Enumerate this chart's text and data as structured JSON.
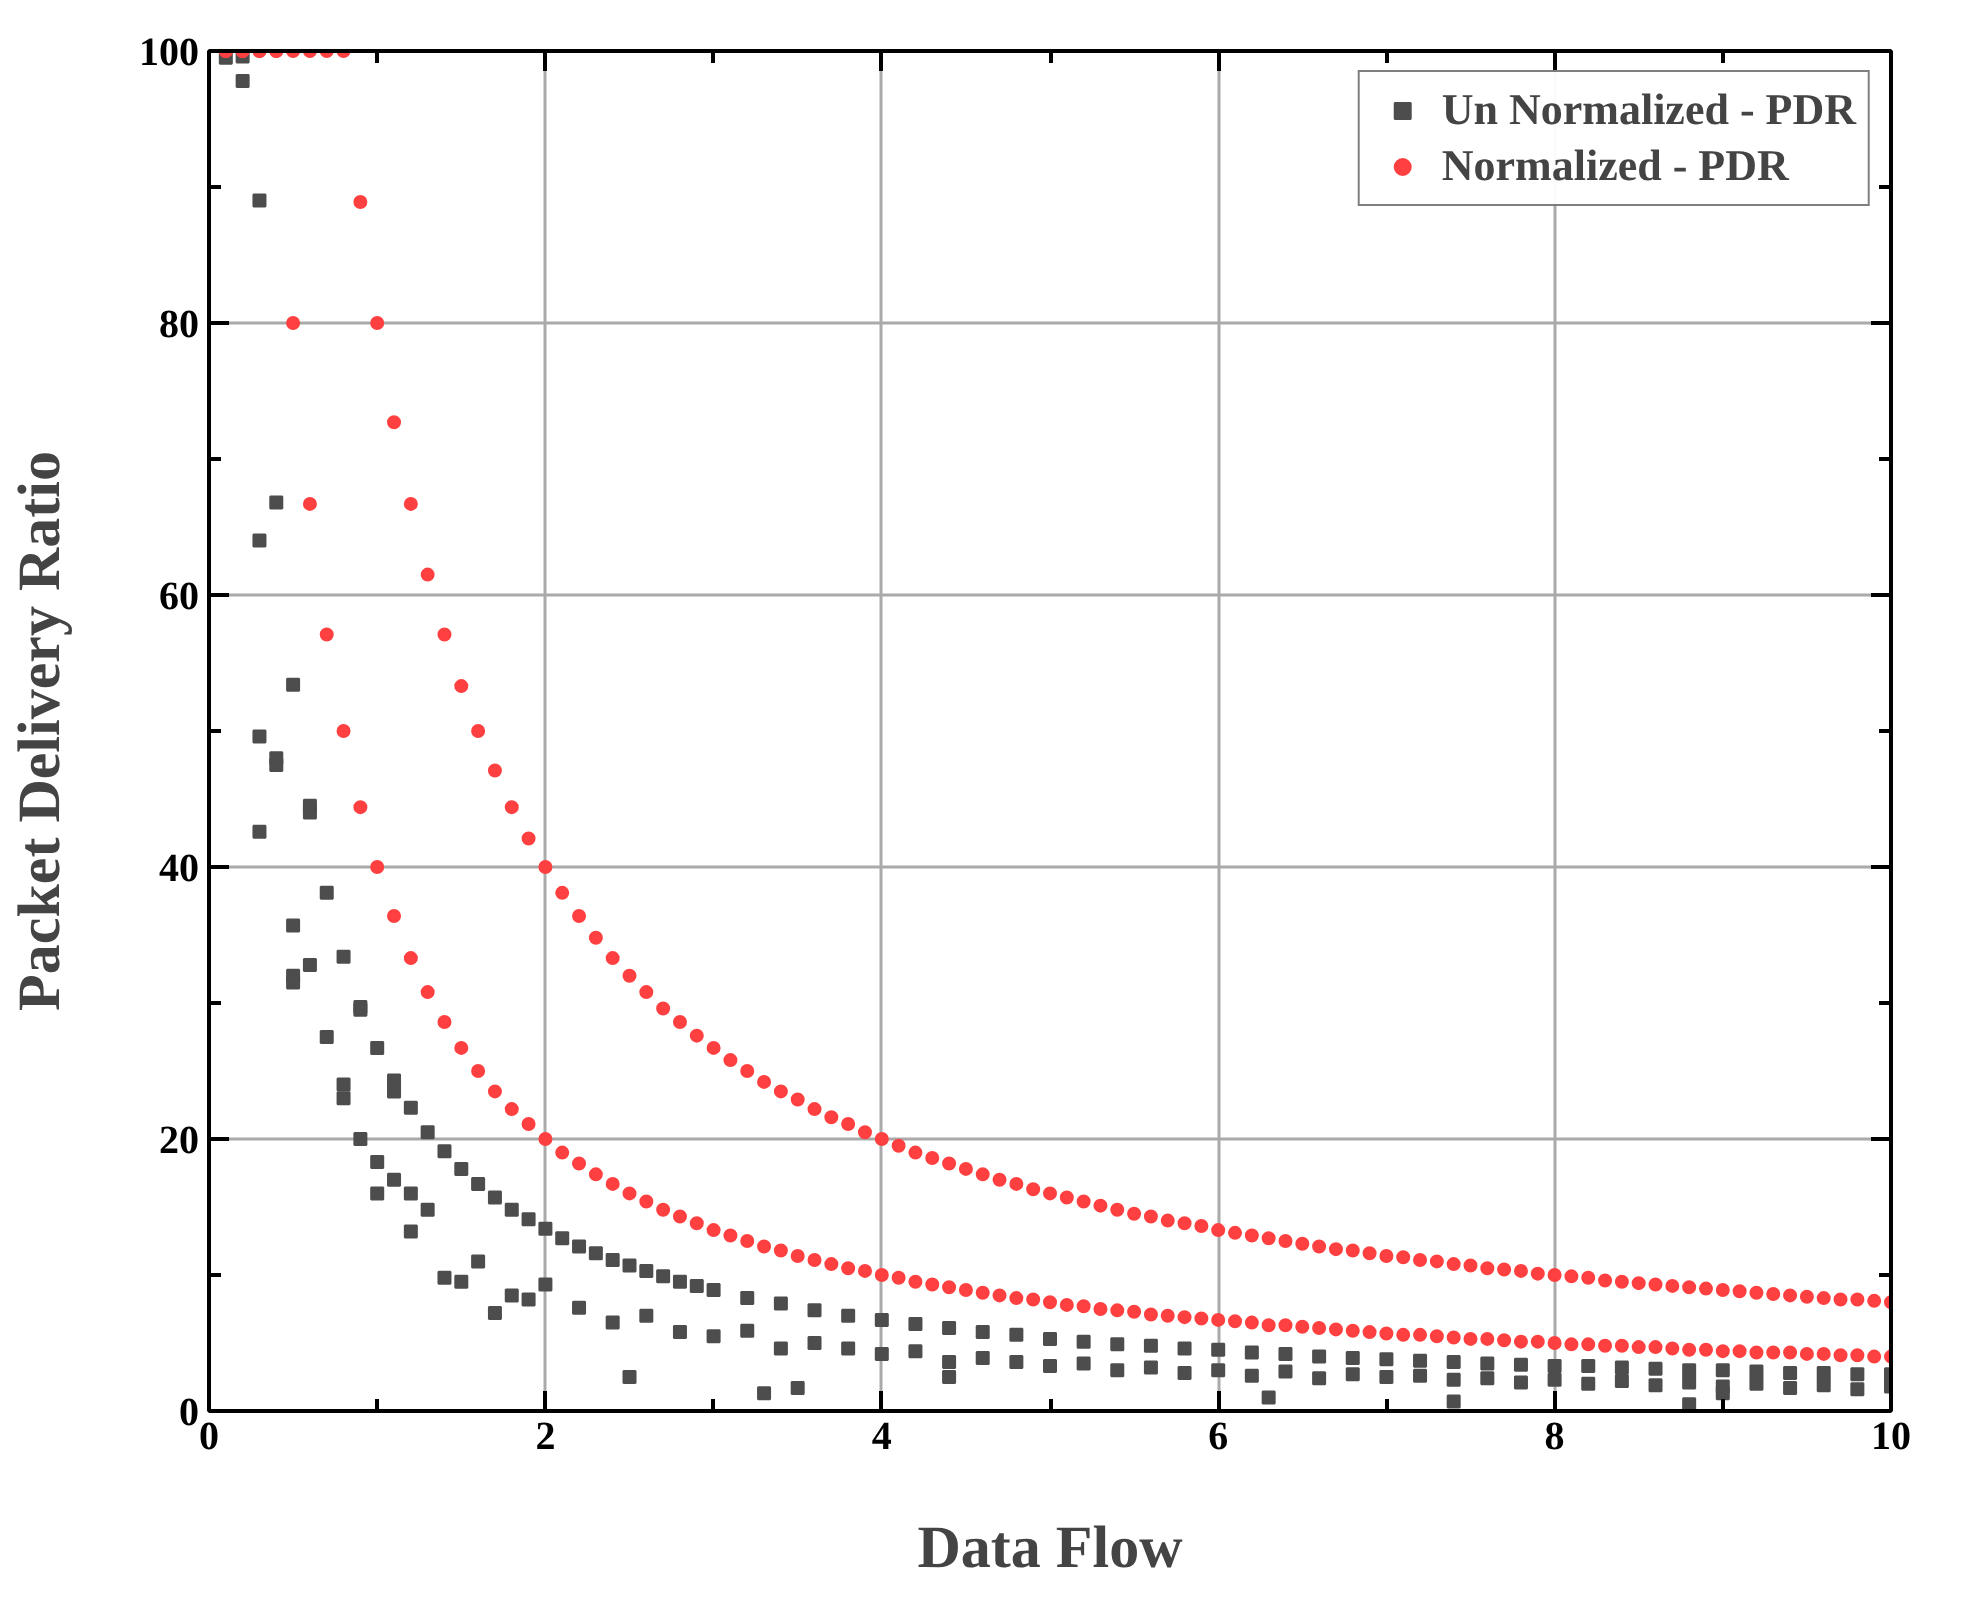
{
  "chart_data": {
    "type": "scatter",
    "xlabel": "Data Flow",
    "ylabel": "Packet Delivery Ratio",
    "xlim": [
      0,
      10
    ],
    "ylim": [
      0,
      100
    ],
    "xticks": [
      0,
      {
        "value": 1,
        "label": null
      },
      2,
      {
        "value": 3,
        "label": null
      },
      4,
      {
        "value": 5,
        "label": null
      },
      6,
      {
        "value": 7,
        "label": null
      },
      8,
      {
        "value": 9,
        "label": null
      },
      10
    ],
    "yticks": [
      0,
      {
        "value": 10,
        "label": null
      },
      20,
      {
        "value": 30,
        "label": null
      },
      40,
      {
        "value": 50,
        "label": null
      },
      60,
      {
        "value": 70,
        "label": null
      },
      80,
      {
        "value": 90,
        "label": null
      },
      100
    ],
    "grid": true,
    "legend": "top right",
    "series": [
      {
        "name": "Un Normalized - PDR",
        "color": "#4d4d4d",
        "marker": "square",
        "x": [
          0.1,
          0.2,
          0.2,
          0.3,
          0.4,
          0.5,
          0.6,
          0.7,
          0.8,
          0.9,
          1.0,
          1.1,
          1.2,
          1.3,
          1.4,
          1.5,
          1.6,
          1.7,
          1.8,
          1.9,
          2.0,
          2.1,
          2.2,
          2.3,
          2.4,
          2.5,
          2.6,
          2.7,
          2.8,
          2.9,
          3.0,
          3.2,
          3.4,
          3.6,
          3.8,
          4.0,
          4.2,
          4.4,
          4.6,
          4.8,
          5.0,
          5.2,
          5.4,
          5.6,
          5.8,
          6.0,
          6.2,
          6.4,
          6.6,
          6.8,
          7.0,
          7.2,
          7.4,
          7.6,
          7.8,
          8.0,
          8.2,
          8.4,
          8.6,
          8.8,
          9.0,
          9.2,
          9.4,
          9.6,
          9.8,
          10,
          0.3,
          0.4,
          0.5,
          0.6,
          0.7,
          0.8,
          0.9,
          1.0,
          1.1,
          1.2,
          1.3,
          1.4,
          1.5,
          1.6,
          1.7,
          1.8,
          1.9,
          2.0,
          2.2,
          2.4,
          2.6,
          2.8,
          3.0,
          3.2,
          3.4,
          3.6,
          3.8,
          4.0,
          4.2,
          4.4,
          4.6,
          4.8,
          5.0,
          5.2,
          5.4,
          5.6,
          5.8,
          6.0,
          6.2,
          6.4,
          6.6,
          6.8,
          7.0,
          7.2,
          7.4,
          7.6,
          7.8,
          8.0,
          8.2,
          8.4,
          8.6,
          8.8,
          9.0,
          9.2,
          9.4,
          9.6,
          9.8,
          10,
          0.3,
          0.3,
          0.4,
          0.5,
          0.5,
          0.6,
          0.8,
          0.9,
          1.0,
          1.1,
          1.2,
          2.5,
          3.3,
          3.5,
          4.4,
          6.3,
          7.4,
          8.8,
          9.0
        ],
        "values": [
          99.5,
          97.8,
          99.6,
          89.0,
          66.8,
          53.4,
          44.5,
          38.1,
          33.4,
          29.7,
          26.7,
          24.3,
          22.3,
          20.5,
          19.1,
          17.8,
          16.7,
          15.7,
          14.8,
          14.1,
          13.4,
          12.7,
          12.1,
          11.6,
          11.1,
          10.7,
          10.3,
          9.9,
          9.5,
          9.2,
          8.9,
          8.3,
          7.9,
          7.4,
          7.0,
          6.7,
          6.4,
          6.1,
          5.8,
          5.6,
          5.3,
          5.1,
          4.9,
          4.8,
          4.6,
          4.5,
          4.3,
          4.2,
          4.0,
          3.9,
          3.8,
          3.7,
          3.6,
          3.5,
          3.4,
          3.3,
          3.3,
          3.2,
          3.1,
          3.0,
          3.0,
          2.9,
          2.8,
          2.8,
          2.7,
          2.7,
          49.6,
          48,
          32,
          32.8,
          27.5,
          23,
          20,
          16,
          17,
          13.2,
          14.8,
          9.8,
          9.5,
          11,
          7.2,
          8.5,
          8.2,
          9.3,
          7.6,
          6.5,
          7.0,
          5.8,
          5.5,
          5.9,
          4.6,
          5.0,
          4.6,
          4.2,
          4.4,
          3.6,
          3.9,
          3.6,
          3.3,
          3.5,
          3.0,
          3.2,
          2.8,
          3.0,
          2.6,
          2.9,
          2.4,
          2.7,
          2.5,
          2.6,
          2.3,
          2.4,
          2.1,
          2.3,
          2.0,
          2.2,
          1.9,
          2.1,
          1.8,
          2.0,
          1.7,
          1.9,
          1.6,
          1.8,
          64,
          42.6,
          47.5,
          35.7,
          31.5,
          44,
          24,
          29.5,
          18.3,
          23.5,
          16,
          2.5,
          1.3,
          1.7,
          2.5,
          1,
          0.7,
          0.5,
          1.3
        ]
      },
      {
        "name": "Normalized - PDR",
        "color": "#ff4040",
        "marker": "circle",
        "x": [
          0.1,
          0.2,
          0.3,
          0.4,
          0.5,
          0.6,
          0.7,
          0.8,
          0.9,
          1.0,
          1.1,
          1.2,
          1.3,
          1.4,
          1.5,
          1.6,
          1.7,
          1.8,
          1.9,
          2.0,
          2.1,
          2.2,
          2.3,
          2.4,
          2.5,
          2.6,
          2.7,
          2.8,
          2.9,
          3.0,
          3.1,
          3.2,
          3.3,
          3.4,
          3.5,
          3.6,
          3.7,
          3.8,
          3.9,
          4.0,
          4.1,
          4.2,
          4.3,
          4.4,
          4.5,
          4.6,
          4.7,
          4.8,
          4.9,
          5.0,
          5.1,
          5.2,
          5.3,
          5.4,
          5.5,
          5.6,
          5.7,
          5.8,
          5.9,
          6.0,
          6.1,
          6.2,
          6.3,
          6.4,
          6.5,
          6.6,
          6.7,
          6.8,
          6.9,
          7.0,
          7.1,
          7.2,
          7.3,
          7.4,
          7.5,
          7.6,
          7.7,
          7.8,
          7.9,
          8.0,
          8.1,
          8.2,
          8.3,
          8.4,
          8.5,
          8.6,
          8.7,
          8.8,
          8.9,
          9.0,
          9.1,
          9.2,
          9.3,
          9.4,
          9.5,
          9.6,
          9.7,
          9.8,
          9.9,
          10,
          0.1,
          0.2,
          0.3,
          0.4,
          0.5,
          0.6,
          0.7,
          0.8,
          0.9,
          1.0,
          1.1,
          1.2,
          1.3,
          1.4,
          1.5,
          1.6,
          1.7,
          1.8,
          1.9,
          2.0,
          2.1,
          2.2,
          2.3,
          2.4,
          2.5,
          2.6,
          2.7,
          2.8,
          2.9,
          3.0,
          3.1,
          3.2,
          3.3,
          3.4,
          3.5,
          3.6,
          3.7,
          3.8,
          3.9,
          4.0,
          4.1,
          4.2,
          4.3,
          4.4,
          4.5,
          4.6,
          4.7,
          4.8,
          4.9,
          5.0,
          5.1,
          5.2,
          5.3,
          5.4,
          5.5,
          5.6,
          5.7,
          5.8,
          5.9,
          6.0,
          6.1,
          6.2,
          6.3,
          6.4,
          6.5,
          6.6,
          6.7,
          6.8,
          6.9,
          7.0,
          7.1,
          7.2,
          7.3,
          7.4,
          7.5,
          7.6,
          7.7,
          7.8,
          7.9,
          8.0,
          8.1,
          8.2,
          8.3,
          8.4,
          8.5,
          8.6,
          8.7,
          8.8,
          8.9,
          9.0,
          9.1,
          9.2,
          9.3,
          9.4,
          9.5,
          9.6,
          9.7,
          9.8,
          9.9,
          10
        ],
        "values": [
          100,
          100,
          100,
          100,
          100,
          100,
          100,
          100,
          88.9,
          80,
          72.7,
          66.7,
          61.5,
          57.1,
          53.3,
          50,
          47.1,
          44.4,
          42.1,
          40,
          38.1,
          36.4,
          34.8,
          33.3,
          32,
          30.8,
          29.6,
          28.6,
          27.6,
          26.7,
          25.8,
          25,
          24.2,
          23.5,
          22.9,
          22.2,
          21.6,
          21.1,
          20.5,
          20,
          19.5,
          19,
          18.6,
          18.2,
          17.8,
          17.4,
          17,
          16.7,
          16.3,
          16,
          15.7,
          15.4,
          15.1,
          14.8,
          14.5,
          14.3,
          14,
          13.8,
          13.6,
          13.3,
          13.1,
          12.9,
          12.7,
          12.5,
          12.3,
          12.1,
          11.9,
          11.8,
          11.6,
          11.4,
          11.3,
          11.1,
          11,
          10.8,
          10.7,
          10.5,
          10.4,
          10.3,
          10.1,
          10,
          9.9,
          9.8,
          9.6,
          9.5,
          9.4,
          9.3,
          9.2,
          9.1,
          9,
          8.9,
          8.8,
          8.7,
          8.6,
          8.5,
          8.4,
          8.3,
          8.2,
          8.2,
          8.1,
          8,
          100,
          100,
          100,
          100,
          80,
          66.7,
          57.1,
          50,
          44.4,
          40,
          36.4,
          33.3,
          30.8,
          28.6,
          26.7,
          25,
          23.5,
          22.2,
          21.1,
          20,
          19,
          18.2,
          17.4,
          16.7,
          16,
          15.4,
          14.8,
          14.3,
          13.8,
          13.3,
          12.9,
          12.5,
          12.1,
          11.8,
          11.4,
          11.1,
          10.8,
          10.5,
          10.3,
          10,
          9.8,
          9.5,
          9.3,
          9.1,
          8.9,
          8.7,
          8.5,
          8.3,
          8.2,
          8,
          7.8,
          7.7,
          7.5,
          7.4,
          7.3,
          7.1,
          7,
          6.9,
          6.8,
          6.7,
          6.6,
          6.5,
          6.3,
          6.3,
          6.2,
          6.1,
          6,
          5.9,
          5.8,
          5.7,
          5.6,
          5.6,
          5.5,
          5.4,
          5.3,
          5.3,
          5.2,
          5.1,
          5.1,
          5,
          4.9,
          4.9,
          4.8,
          4.8,
          4.7,
          4.7,
          4.6,
          4.5,
          4.5,
          4.4,
          4.4,
          4.3,
          4.3,
          4.3,
          4.2,
          4.2,
          4.1,
          4.1,
          4,
          4
        ]
      }
    ]
  }
}
